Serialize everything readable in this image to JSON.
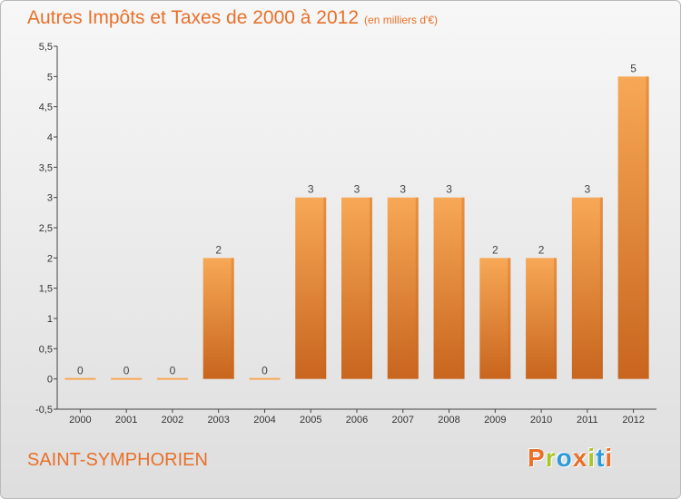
{
  "header": {
    "title": "Autres Impôts et Taxes de 2000 à 2012",
    "subtitle": "(en milliers d'€)"
  },
  "footer": {
    "commune": "SAINT-SYMPHORIEN",
    "brand_letters": [
      "P",
      "r",
      "o",
      "x",
      "i",
      "t",
      "i"
    ],
    "brand_colors": [
      "#e8702a",
      "#a9c526",
      "#2a9ad8",
      "#e8702a",
      "#a9c526",
      "#2a9ad8",
      "#e8702a"
    ]
  },
  "colors": {
    "title": "#e8702a",
    "bar_light": "#f7a856",
    "bar_dark": "#c8651e",
    "axis": "#444444"
  },
  "chart_data": {
    "type": "bar",
    "categories": [
      "2000",
      "2001",
      "2002",
      "2003",
      "2004",
      "2005",
      "2006",
      "2007",
      "2008",
      "2009",
      "2010",
      "2011",
      "2012"
    ],
    "values": [
      0,
      0,
      0,
      2,
      0,
      3,
      3,
      3,
      3,
      2,
      2,
      3,
      5
    ],
    "data_labels": [
      "0",
      "0",
      "0",
      "2",
      "0",
      "3",
      "3",
      "3",
      "3",
      "2",
      "2",
      "3",
      "5"
    ],
    "ylim": [
      -0.5,
      5.5
    ],
    "yticks": [
      -0.5,
      0,
      0.5,
      1,
      1.5,
      2,
      2.5,
      3,
      3.5,
      4,
      4.5,
      5,
      5.5
    ],
    "ytick_labels": [
      "-0,5",
      "0",
      "0,5",
      "1",
      "1,5",
      "2",
      "2,5",
      "3",
      "3,5",
      "4",
      "4,5",
      "5",
      "5,5"
    ],
    "grid": false,
    "title": "Autres Impôts et Taxes de 2000 à 2012",
    "xlabel": "",
    "ylabel": ""
  }
}
